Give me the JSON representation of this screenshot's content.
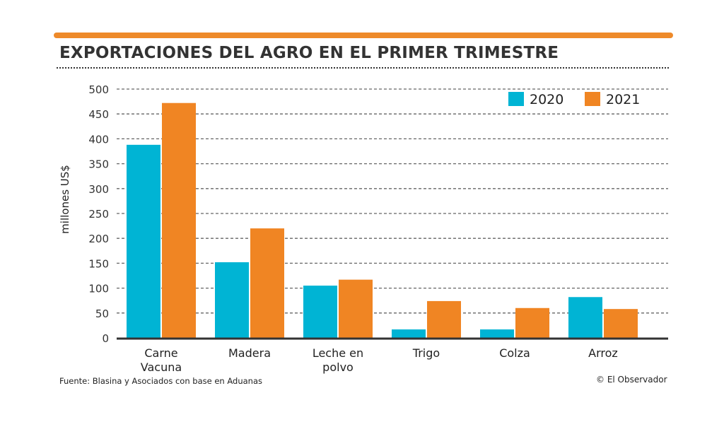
{
  "chart_data": {
    "type": "bar",
    "title": "EXPORTACIONES DEL AGRO EN EL PRIMER TRIMESTRE",
    "ylabel": "millones US$",
    "xlabel": "",
    "ylim": [
      0,
      500
    ],
    "yticks": [
      0,
      50,
      100,
      150,
      200,
      250,
      300,
      350,
      400,
      450,
      500
    ],
    "grid": true,
    "legend_position": "top-right",
    "categories": [
      [
        "Carne",
        "Vacuna"
      ],
      [
        "Madera"
      ],
      [
        "Leche en",
        "polvo"
      ],
      [
        "Trigo"
      ],
      [
        "Colza"
      ],
      [
        "Arroz"
      ]
    ],
    "series": [
      {
        "name": "2020",
        "color": "#00b4d4",
        "values": [
          388,
          152,
          105,
          17,
          17,
          82
        ]
      },
      {
        "name": "2021",
        "color": "#f08523",
        "values": [
          472,
          220,
          117,
          74,
          60,
          58
        ]
      }
    ]
  },
  "source": "Fuente: Blasina y Asociados con base en Aduanas",
  "credit": "© El Observador"
}
